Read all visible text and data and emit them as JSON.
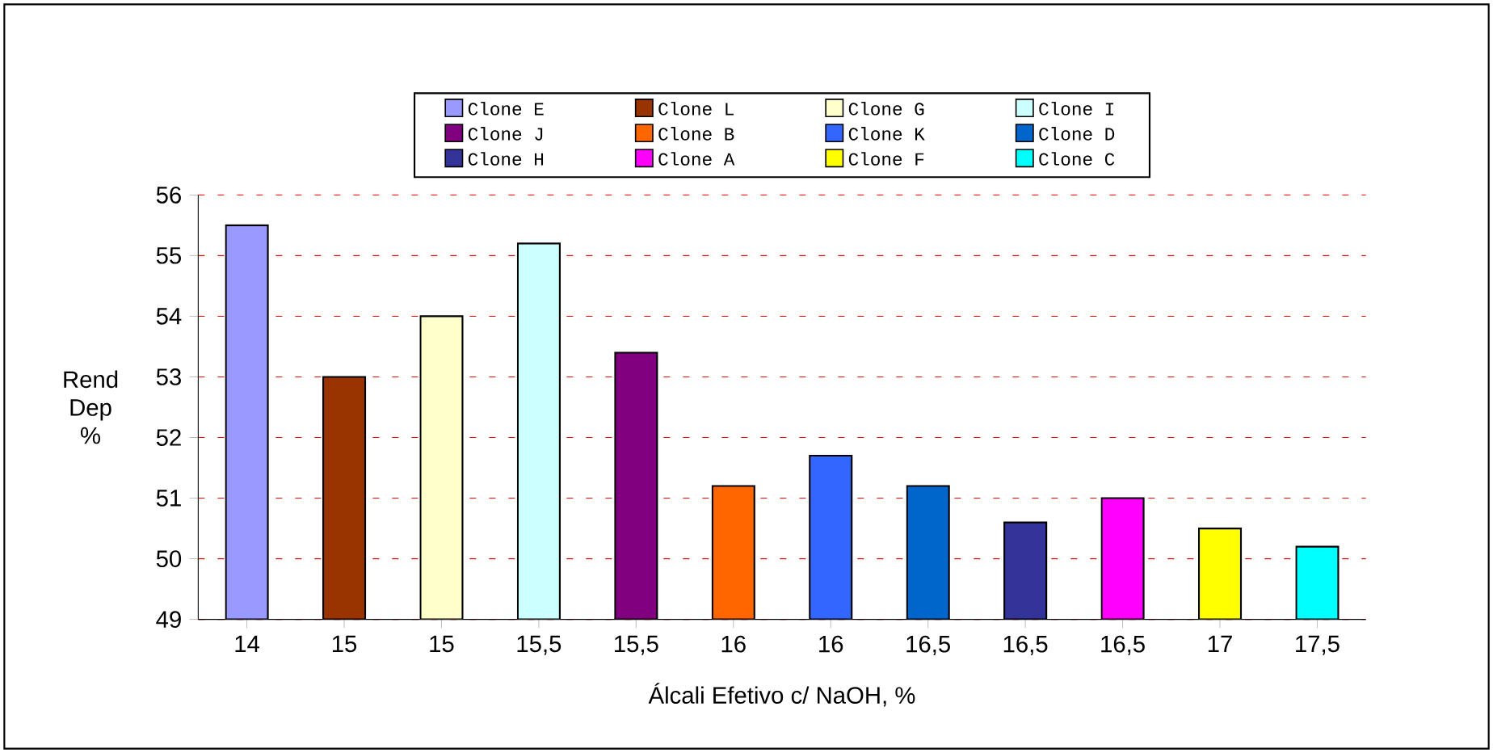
{
  "chart_data": {
    "type": "bar",
    "xlabel": "Álcali Efetivo c/ NaOH, %",
    "ylabel": "Rend Dep %",
    "categories": [
      "14",
      "15",
      "15",
      "15,5",
      "15,5",
      "16",
      "16",
      "16,5",
      "16,5",
      "16,5",
      "17",
      "17,5"
    ],
    "series": [
      {
        "name": "Clone E",
        "color": "#9999ff",
        "values": [
          55.5,
          null,
          null,
          null,
          null,
          null,
          null,
          null,
          null,
          null,
          null,
          null
        ]
      },
      {
        "name": "Clone L",
        "color": "#993300",
        "values": [
          null,
          53.0,
          null,
          null,
          null,
          null,
          null,
          null,
          null,
          null,
          null,
          null
        ]
      },
      {
        "name": "Clone G",
        "color": "#ffffcc",
        "values": [
          null,
          null,
          54.0,
          null,
          null,
          null,
          null,
          null,
          null,
          null,
          null,
          null
        ]
      },
      {
        "name": "Clone I",
        "color": "#ccffff",
        "values": [
          null,
          null,
          null,
          55.2,
          null,
          null,
          null,
          null,
          null,
          null,
          null,
          null
        ]
      },
      {
        "name": "Clone J",
        "color": "#800080",
        "values": [
          null,
          null,
          null,
          null,
          53.4,
          null,
          null,
          null,
          null,
          null,
          null,
          null
        ]
      },
      {
        "name": "Clone B",
        "color": "#ff6600",
        "values": [
          null,
          null,
          null,
          null,
          null,
          51.2,
          null,
          null,
          null,
          null,
          null,
          null
        ]
      },
      {
        "name": "Clone K",
        "color": "#3366ff",
        "values": [
          null,
          null,
          null,
          null,
          null,
          null,
          51.7,
          null,
          null,
          null,
          null,
          null
        ]
      },
      {
        "name": "Clone D",
        "color": "#0066cc",
        "values": [
          null,
          null,
          null,
          null,
          null,
          null,
          null,
          51.2,
          null,
          null,
          null,
          null
        ]
      },
      {
        "name": "Clone H",
        "color": "#333399",
        "values": [
          null,
          null,
          null,
          null,
          null,
          null,
          null,
          null,
          50.6,
          null,
          null,
          null
        ]
      },
      {
        "name": "Clone A",
        "color": "#ff00ff",
        "values": [
          null,
          null,
          null,
          null,
          null,
          null,
          null,
          null,
          null,
          51.0,
          null,
          null
        ]
      },
      {
        "name": "Clone F",
        "color": "#ffff00",
        "values": [
          null,
          null,
          null,
          null,
          null,
          null,
          null,
          null,
          null,
          null,
          50.5,
          null
        ]
      },
      {
        "name": "Clone C",
        "color": "#00ffff",
        "values": [
          null,
          null,
          null,
          null,
          null,
          null,
          null,
          null,
          null,
          null,
          null,
          50.2
        ]
      }
    ],
    "ylim": [
      49,
      56
    ],
    "yticks": [
      49,
      50,
      51,
      52,
      53,
      54,
      55,
      56
    ],
    "grid": "y",
    "legend": "top"
  }
}
